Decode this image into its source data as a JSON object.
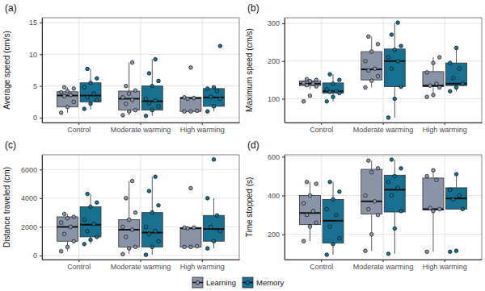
{
  "chart_data": [
    {
      "type": "box",
      "title": "(a)",
      "y_label": "Average speed (cm/s)",
      "categories": [
        "Control",
        "Moderate warming",
        "High warming"
      ],
      "ylim": [
        -0.75,
        15.75
      ],
      "yticks": [
        0,
        5,
        10,
        15
      ],
      "grid": true,
      "legend": "bottom",
      "series": [
        {
          "name": "Learning",
          "color": "#8a94a6",
          "boxes": [
            {
              "min": 0.8,
              "q1": 1.7,
              "median": 3.5,
              "q3": 4.1,
              "max": 4.8,
              "points": [
                0.8,
                1.7,
                2.5,
                3.4,
                3.6,
                4.0,
                4.2,
                4.6,
                4.8
              ]
            },
            {
              "min": 0.4,
              "q1": 1.2,
              "median": 3.0,
              "q3": 4.2,
              "max": 8.7,
              "points": [
                0.4,
                1.0,
                1.2,
                2.2,
                2.8,
                3.2,
                3.8,
                4.3,
                5.0,
                8.7
              ]
            },
            {
              "min": 1.0,
              "q1": 1.0,
              "median": 3.1,
              "q3": 3.2,
              "max": 3.2,
              "points": [
                1.0,
                1.0,
                1.1,
                3.0,
                3.1,
                3.2,
                7.9
              ]
            }
          ]
        },
        {
          "name": "Memory",
          "color": "#17708f",
          "boxes": [
            {
              "min": 1.3,
              "q1": 2.5,
              "median": 3.5,
              "q3": 5.5,
              "max": 7.7,
              "points": [
                1.4,
                2.2,
                2.8,
                3.2,
                3.8,
                4.8,
                5.5,
                6.2,
                7.7
              ]
            },
            {
              "min": 0.3,
              "q1": 1.2,
              "median": 2.6,
              "q3": 5.0,
              "max": 9.2,
              "points": [
                0.3,
                1.2,
                1.8,
                2.3,
                2.7,
                3.0,
                5.0,
                5.8,
                7.0,
                9.2
              ]
            },
            {
              "min": 1.0,
              "q1": 1.8,
              "median": 3.2,
              "q3": 4.6,
              "max": 4.8,
              "points": [
                1.0,
                1.8,
                3.0,
                3.3,
                4.2,
                4.6,
                4.8,
                11.3
              ]
            }
          ]
        }
      ]
    },
    {
      "type": "box",
      "title": "(b)",
      "y_label": "Maximum speed (cm/s)",
      "categories": [
        "Control",
        "Moderate warming",
        "High warming"
      ],
      "ylim": [
        37,
        315
      ],
      "yticks": [
        100,
        200,
        300
      ],
      "grid": true,
      "series": [
        {
          "color": "#8a94a6",
          "boxes": [
            {
              "min": 125,
              "q1": 135,
              "median": 140,
              "q3": 147,
              "max": 152,
              "points": [
                93,
                108,
                133,
                136,
                140,
                142,
                147,
                150,
                152
              ]
            },
            {
              "min": 130,
              "q1": 150,
              "median": 178,
              "q3": 225,
              "max": 265,
              "points": [
                130,
                148,
                160,
                175,
                180,
                200,
                225,
                245,
                265
              ]
            },
            {
              "min": 105,
              "q1": 132,
              "median": 135,
              "q3": 172,
              "max": 210,
              "points": [
                105,
                110,
                130,
                135,
                140,
                170,
                195,
                210
              ]
            }
          ]
        },
        {
          "color": "#17708f",
          "boxes": [
            {
              "min": 93,
              "q1": 115,
              "median": 120,
              "q3": 142,
              "max": 165,
              "points": [
                93,
                105,
                115,
                118,
                120,
                125,
                140,
                150,
                165
              ]
            },
            {
              "min": 50,
              "q1": 132,
              "median": 200,
              "q3": 232,
              "max": 302,
              "points": [
                50,
                100,
                132,
                180,
                200,
                210,
                230,
                240,
                270,
                302
              ]
            },
            {
              "min": 120,
              "q1": 135,
              "median": 140,
              "q3": 195,
              "max": 235,
              "points": [
                120,
                130,
                140,
                155,
                180,
                195,
                235
              ]
            }
          ]
        }
      ]
    },
    {
      "type": "box",
      "title": "(c)",
      "y_label": "Distance traveled (cm)",
      "categories": [
        "Control",
        "Moderate warming",
        "High warming"
      ],
      "ylim": [
        -280,
        7030
      ],
      "yticks": [
        0,
        2000,
        4000,
        6000
      ],
      "grid": true,
      "series": [
        {
          "color": "#8a94a6",
          "boxes": [
            {
              "min": 300,
              "q1": 1000,
              "median": 2000,
              "q3": 2700,
              "max": 2900,
              "points": [
                300,
                600,
                1000,
                1500,
                2000,
                2300,
                2600,
                2700,
                2900
              ]
            },
            {
              "min": 100,
              "q1": 600,
              "median": 1800,
              "q3": 2500,
              "max": 5200,
              "points": [
                100,
                500,
                600,
                1300,
                1800,
                2000,
                2500,
                3000,
                4000,
                5200
              ]
            },
            {
              "min": 600,
              "q1": 600,
              "median": 1900,
              "q3": 1950,
              "max": 1950,
              "points": [
                600,
                600,
                650,
                1900,
                1950,
                1950,
                4700
              ]
            }
          ]
        },
        {
          "color": "#17708f",
          "boxes": [
            {
              "min": 800,
              "q1": 1300,
              "median": 2150,
              "q3": 3400,
              "max": 4300,
              "points": [
                800,
                1100,
                1300,
                1700,
                2200,
                2500,
                3400,
                3700,
                4300
              ]
            },
            {
              "min": 50,
              "q1": 600,
              "median": 1600,
              "q3": 3000,
              "max": 5500,
              "points": [
                50,
                600,
                1000,
                1500,
                1700,
                2000,
                3000,
                3500,
                4500,
                5500
              ]
            },
            {
              "min": 500,
              "q1": 1000,
              "median": 1850,
              "q3": 2800,
              "max": 4000,
              "points": [
                500,
                1000,
                1700,
                2000,
                2800,
                4000,
                6700
              ]
            }
          ]
        }
      ]
    },
    {
      "type": "box",
      "title": "(d)",
      "y_label": "Time stopped (s)",
      "categories": [
        "Control",
        "Moderate warming",
        "High warming"
      ],
      "ylim": [
        70,
        610
      ],
      "yticks": [
        200,
        400,
        600
      ],
      "grid": true,
      "series": [
        {
          "color": "#8a94a6",
          "boxes": [
            {
              "min": 165,
              "q1": 250,
              "median": 310,
              "q3": 400,
              "max": 470,
              "points": [
                165,
                240,
                260,
                300,
                320,
                360,
                400,
                460,
                470
              ]
            },
            {
              "min": 115,
              "q1": 305,
              "median": 370,
              "q3": 535,
              "max": 580,
              "points": [
                115,
                200,
                300,
                330,
                370,
                400,
                520,
                540,
                580
              ]
            },
            {
              "min": 110,
              "q1": 325,
              "median": 330,
              "q3": 490,
              "max": 530,
              "points": [
                110,
                320,
                330,
                335,
                480,
                500,
                530
              ]
            }
          ]
        },
        {
          "color": "#17708f",
          "boxes": [
            {
              "min": 95,
              "q1": 155,
              "median": 270,
              "q3": 380,
              "max": 470,
              "points": [
                95,
                150,
                180,
                240,
                300,
                330,
                380,
                420,
                470
              ]
            },
            {
              "min": 100,
              "q1": 315,
              "median": 430,
              "q3": 505,
              "max": 585,
              "points": [
                100,
                230,
                320,
                400,
                440,
                470,
                500,
                540,
                585
              ]
            },
            {
              "min": 330,
              "q1": 330,
              "median": 385,
              "q3": 440,
              "max": 515,
              "points": [
                110,
                115,
                330,
                380,
                400,
                430,
                510
              ]
            }
          ]
        }
      ]
    }
  ]
}
